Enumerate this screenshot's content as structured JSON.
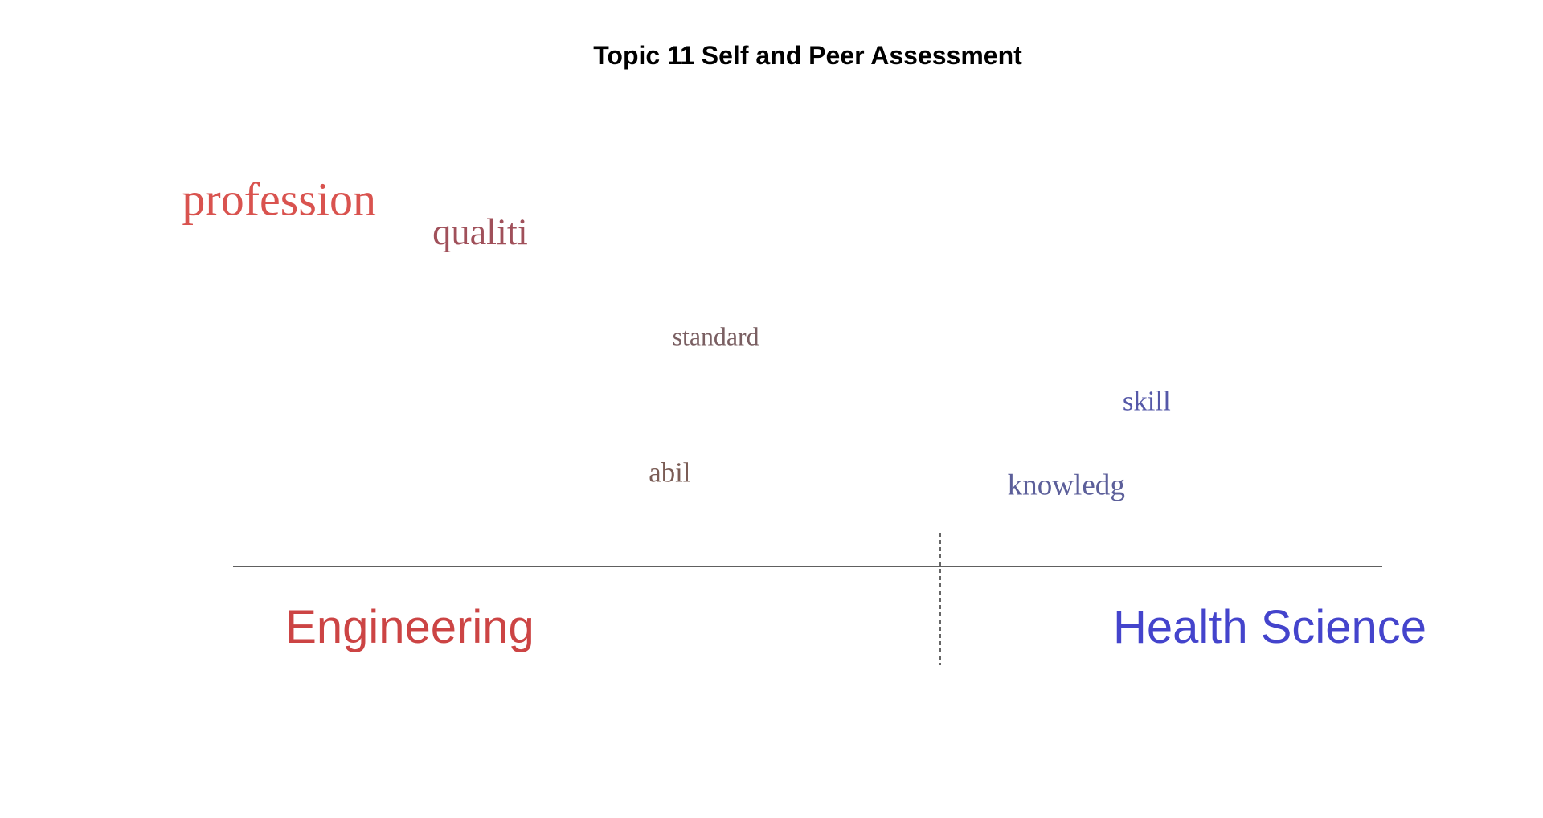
{
  "chart_data": {
    "type": "scatter",
    "title": "Topic 11 Self and Peer Assessment",
    "description_type": "word-comparison-cloud",
    "xlim": [
      -1,
      1
    ],
    "ylim": [
      0,
      1
    ],
    "groups": [
      {
        "name": "Engineering",
        "color": "#cc4444"
      },
      {
        "name": "Health Science",
        "color": "#4444cc"
      }
    ],
    "terms": [
      {
        "word": "profession",
        "x": -0.92,
        "y": 0.92,
        "weight": 1.0,
        "color": "#d9534f"
      },
      {
        "word": "qualiti",
        "x": -0.57,
        "y": 0.83,
        "weight": 0.8,
        "color": "#a0505a"
      },
      {
        "word": "standard",
        "x": -0.16,
        "y": 0.52,
        "weight": 0.55,
        "color": "#7a5f62"
      },
      {
        "word": "abil",
        "x": -0.24,
        "y": 0.1,
        "weight": 0.6,
        "color": "#7a5c55"
      },
      {
        "word": "skill",
        "x": 0.59,
        "y": 0.32,
        "weight": 0.6,
        "color": "#5558a8"
      },
      {
        "word": "knowledg",
        "x": 0.45,
        "y": 0.06,
        "weight": 0.64,
        "color": "#5c5f9a"
      }
    ],
    "colors": {
      "axis": "#000000",
      "divider": "#000000",
      "title": "#000000"
    }
  }
}
